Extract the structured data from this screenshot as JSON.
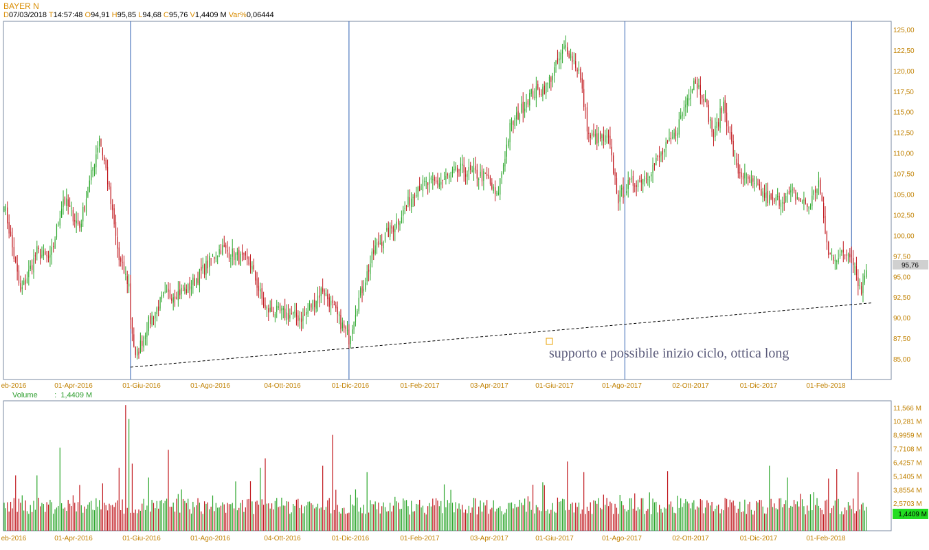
{
  "header": {
    "symbol": "BAYER N",
    "date_key": "D",
    "date": "07/03/2018",
    "time_key": "T",
    "time": "14:57:48",
    "open_key": "O",
    "open": "94,91",
    "high_key": "H",
    "high": "95,85",
    "low_key": "L",
    "low": "94,68",
    "close_key": "C",
    "close": "95,76",
    "vol_key": "V",
    "volume": "1,4409 M",
    "varp_key": "Var%",
    "varp": "0,06444"
  },
  "volume_header": {
    "label": "Volume",
    "sep": ":",
    "value": "1,4409 M"
  },
  "colors": {
    "up": "#2aa52a",
    "down": "#c0161c",
    "vline": "#2a5db0",
    "volume_badge": "#22dd22",
    "price_badge": "#d0d0d0"
  },
  "annotation": {
    "text": "supporto e possibile inizio ciclo, ottica long",
    "marker": "square-marker"
  },
  "chart_data": [
    {
      "type": "candlestick",
      "title": "BAYER N",
      "ylim": [
        82.5,
        126.0
      ],
      "y_ticks": [
        "125,00",
        "122,50",
        "120,00",
        "117,50",
        "115,00",
        "112,50",
        "110,00",
        "107,50",
        "105,00",
        "102,50",
        "100,00",
        "97,50",
        "95,00",
        "92,50",
        "90,00",
        "87,50",
        "85,00"
      ],
      "x_ticks": [
        "eb-2016",
        "01-Apr-2016",
        "01-Giu-2016",
        "01-Ago-2016",
        "04-Ott-2016",
        "01-Dic-2016",
        "01-Feb-2017",
        "03-Apr-2017",
        "01-Giu-2017",
        "01-Ago-2017",
        "02-Ott-2017",
        "01-Dic-2017",
        "01-Feb-2018"
      ],
      "last_price": "95,76",
      "anchors": [
        {
          "i": 0,
          "v": 104
        },
        {
          "i": 10,
          "v": 93
        },
        {
          "i": 20,
          "v": 98
        },
        {
          "i": 28,
          "v": 97
        },
        {
          "i": 36,
          "v": 104.5
        },
        {
          "i": 46,
          "v": 101
        },
        {
          "i": 56,
          "v": 110
        },
        {
          "i": 58,
          "v": 112
        },
        {
          "i": 62,
          "v": 108
        },
        {
          "i": 70,
          "v": 97
        },
        {
          "i": 76,
          "v": 94
        },
        {
          "i": 77,
          "v": 90
        },
        {
          "i": 80,
          "v": 85
        },
        {
          "i": 87,
          "v": 89
        },
        {
          "i": 97,
          "v": 92.5
        },
        {
          "i": 112,
          "v": 93.5
        },
        {
          "i": 132,
          "v": 98.5
        },
        {
          "i": 150,
          "v": 96.5
        },
        {
          "i": 159,
          "v": 91
        },
        {
          "i": 170,
          "v": 90.5
        },
        {
          "i": 182,
          "v": 90
        },
        {
          "i": 194,
          "v": 93.5
        },
        {
          "i": 210,
          "v": 87.5
        },
        {
          "i": 214,
          "v": 91
        },
        {
          "i": 226,
          "v": 98.5
        },
        {
          "i": 239,
          "v": 101.5
        },
        {
          "i": 252,
          "v": 106
        },
        {
          "i": 266,
          "v": 106.5
        },
        {
          "i": 278,
          "v": 108
        },
        {
          "i": 294,
          "v": 107
        },
        {
          "i": 300,
          "v": 104.5
        },
        {
          "i": 308,
          "v": 113
        },
        {
          "i": 320,
          "v": 117
        },
        {
          "i": 330,
          "v": 118
        },
        {
          "i": 342,
          "v": 123
        },
        {
          "i": 350,
          "v": 120
        },
        {
          "i": 356,
          "v": 112
        },
        {
          "i": 368,
          "v": 111.5
        },
        {
          "i": 374,
          "v": 104.5
        },
        {
          "i": 380,
          "v": 106
        },
        {
          "i": 392,
          "v": 107.5
        },
        {
          "i": 408,
          "v": 112
        },
        {
          "i": 420,
          "v": 119
        },
        {
          "i": 426,
          "v": 117
        },
        {
          "i": 432,
          "v": 112
        },
        {
          "i": 438,
          "v": 116
        },
        {
          "i": 446,
          "v": 108
        },
        {
          "i": 456,
          "v": 106
        },
        {
          "i": 468,
          "v": 104
        },
        {
          "i": 480,
          "v": 105
        },
        {
          "i": 490,
          "v": 103.5
        },
        {
          "i": 496,
          "v": 106.5
        },
        {
          "i": 502,
          "v": 97.5
        },
        {
          "i": 508,
          "v": 97.5
        },
        {
          "i": 516,
          "v": 98
        },
        {
          "i": 520,
          "v": 94.5
        },
        {
          "i": 522,
          "v": 93
        },
        {
          "i": 524,
          "v": 95.76
        }
      ],
      "vertical_lines": [
        {
          "i": 77,
          "label": "01-Giu-2016"
        },
        {
          "i": 210,
          "label": "01-Dic-2016"
        },
        {
          "i": 378,
          "label": "01-Ago-2017"
        },
        {
          "i": 516,
          "label": "01-Feb-2018"
        }
      ],
      "trendline": {
        "from": {
          "i": 77,
          "v": 84.0
        },
        "to": {
          "i": 528,
          "v": 91.8
        },
        "style": "dashed"
      }
    },
    {
      "type": "bar",
      "title": "Volume",
      "y_ticks": [
        "11,566 M",
        "10,281 M",
        "8,9959 M",
        "7,7108 M",
        "6,4257 M",
        "5,1405 M",
        "3,8554 M",
        "2,5703 M"
      ],
      "ylim": [
        0,
        12.2
      ],
      "last_volume": "1,4409 M",
      "baseline": 2.0,
      "spikes": [
        {
          "i": 7,
          "v": 5.2
        },
        {
          "i": 20,
          "v": 5.2
        },
        {
          "i": 34,
          "v": 7.8
        },
        {
          "i": 46,
          "v": 4.3
        },
        {
          "i": 70,
          "v": 5.9
        },
        {
          "i": 74,
          "v": 11.8
        },
        {
          "i": 76,
          "v": 10.5
        },
        {
          "i": 78,
          "v": 6.3
        },
        {
          "i": 88,
          "v": 5.0
        },
        {
          "i": 100,
          "v": 7.6
        },
        {
          "i": 156,
          "v": 5.9
        },
        {
          "i": 159,
          "v": 6.8
        },
        {
          "i": 194,
          "v": 6.1
        },
        {
          "i": 200,
          "v": 9.0
        },
        {
          "i": 221,
          "v": 5.5
        },
        {
          "i": 343,
          "v": 6.5
        },
        {
          "i": 353,
          "v": 5.5
        },
        {
          "i": 404,
          "v": 5.6
        },
        {
          "i": 466,
          "v": 6.1
        },
        {
          "i": 477,
          "v": 5.0
        },
        {
          "i": 502,
          "v": 4.9
        },
        {
          "i": 507,
          "v": 5.8
        },
        {
          "i": 520,
          "v": 5.5
        }
      ]
    }
  ]
}
